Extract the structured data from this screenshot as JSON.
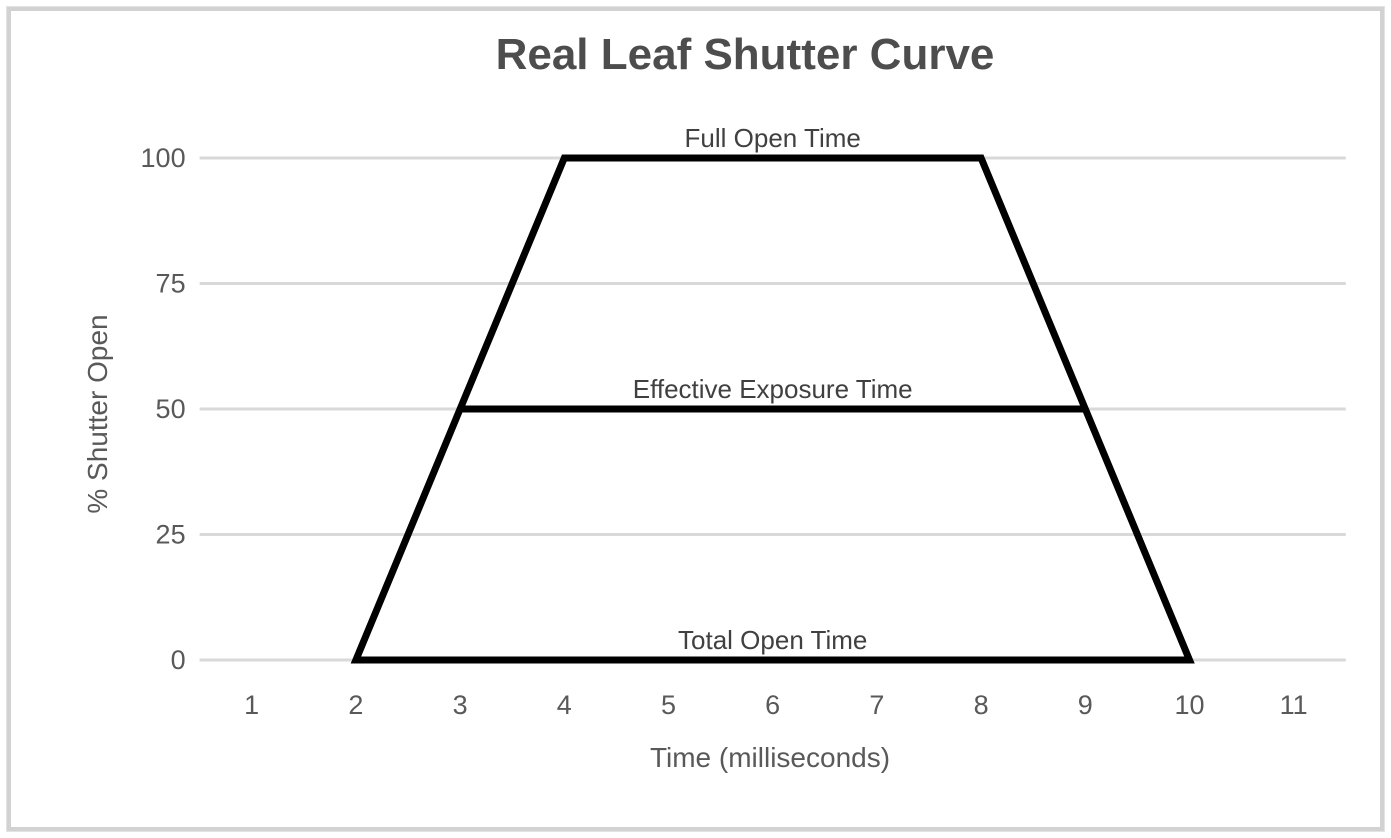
{
  "frame": {
    "border_color": "#d2d2d2",
    "background": "#ffffff"
  },
  "chart_data": {
    "type": "line",
    "title": "Real Leaf Shutter Curve",
    "xlabel": "Time (milliseconds)",
    "ylabel": "% Shutter Open",
    "x_ticks": [
      1,
      2,
      3,
      4,
      5,
      6,
      7,
      8,
      9,
      10,
      11
    ],
    "y_ticks": [
      0,
      25,
      50,
      75,
      100
    ],
    "xlim": [
      0.5,
      11.5
    ],
    "ylim": [
      0,
      100
    ],
    "grid": "horizontal",
    "legend": "none",
    "gridline_color": "#d9d9d9",
    "line_color": "#000000",
    "tick_color": "#595959",
    "annotation_color": "#404040",
    "series": [
      {
        "name": "shutter-curve",
        "closed": true,
        "points": [
          [
            2,
            0
          ],
          [
            4,
            100
          ],
          [
            8,
            100
          ],
          [
            10,
            0
          ]
        ]
      },
      {
        "name": "effective-exposure-line",
        "closed": false,
        "points": [
          [
            3,
            50
          ],
          [
            9,
            50
          ]
        ]
      }
    ],
    "annotations": [
      {
        "text": "Full Open Time",
        "x": 6,
        "y": 100
      },
      {
        "text": "Effective Exposure Time",
        "x": 6,
        "y": 50
      },
      {
        "text": "Total Open Time",
        "x": 6,
        "y": 0
      }
    ]
  }
}
